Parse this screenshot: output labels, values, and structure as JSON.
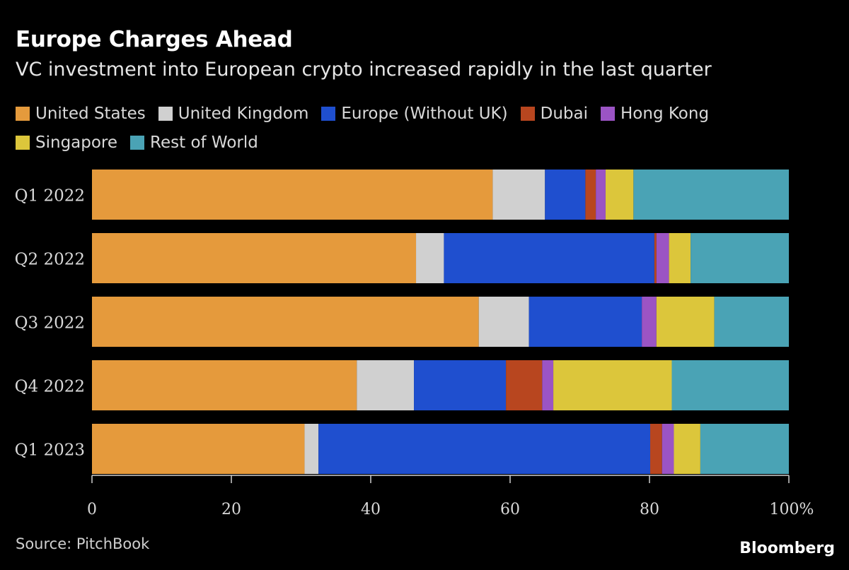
{
  "header": {
    "title": "Europe Charges Ahead",
    "subtitle": "VC investment into European crypto increased rapidly in the last quarter"
  },
  "footer": {
    "source": "Source: PitchBook",
    "brand": "Bloomberg"
  },
  "chart_data": {
    "type": "bar",
    "orientation": "horizontal",
    "stacked": true,
    "categories": [
      "Q1 2022",
      "Q2 2022",
      "Q3 2022",
      "Q4 2022",
      "Q1 2023"
    ],
    "series": [
      {
        "name": "United States",
        "color": "#e59a3c",
        "values": [
          57.5,
          46.5,
          55.5,
          38,
          30.5
        ]
      },
      {
        "name": "United Kingdom",
        "color": "#d0d0d0",
        "values": [
          7.5,
          4,
          7.2,
          8.2,
          2
        ]
      },
      {
        "name": "Europe (Without UK)",
        "color": "#1f4fcf",
        "values": [
          5.8,
          30.2,
          16.2,
          13.2,
          47.6
        ]
      },
      {
        "name": "Dubai",
        "color": "#b8461f",
        "values": [
          1.5,
          0.3,
          0,
          5.2,
          1.7
        ]
      },
      {
        "name": "Hong Kong",
        "color": "#9b54c4",
        "values": [
          1.4,
          1.8,
          2.1,
          1.6,
          1.7
        ]
      },
      {
        "name": "Singapore",
        "color": "#dcc63b",
        "values": [
          4,
          3.1,
          8.3,
          17,
          3.8
        ]
      },
      {
        "name": "Rest of World",
        "color": "#4aa3b5",
        "values": [
          22.3,
          14.1,
          10.7,
          16.8,
          12.7
        ]
      }
    ],
    "legend_rows": [
      [
        0,
        1,
        2,
        3,
        4
      ],
      [
        5,
        6
      ]
    ],
    "x_ticks": [
      "0",
      "20",
      "40",
      "60",
      "80",
      "100%"
    ],
    "xlim": [
      0,
      100
    ],
    "legend_position": "top",
    "grid": false
  }
}
